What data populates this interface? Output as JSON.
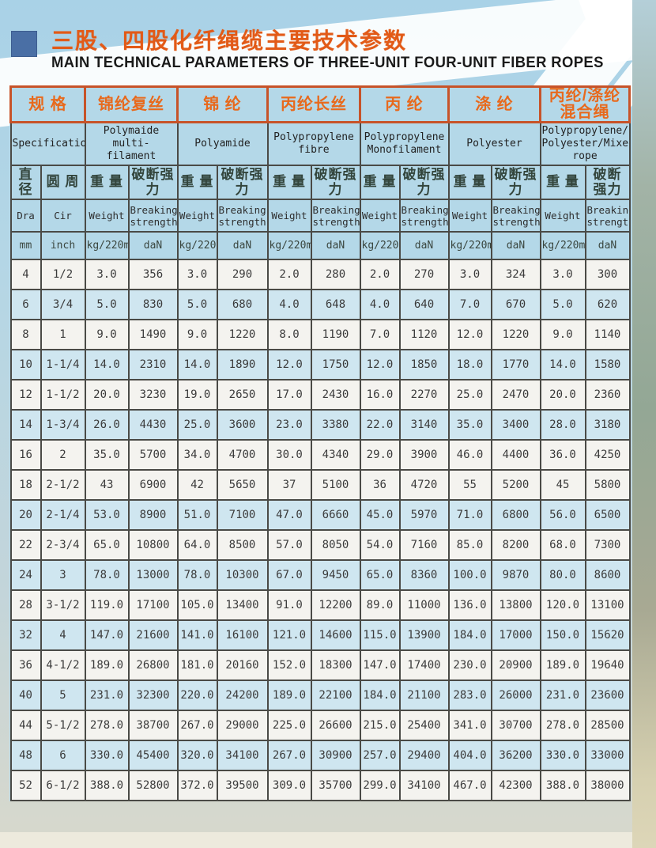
{
  "page": {
    "title_zh": "三股、四股化纤绳缆主要技术参数",
    "title_en": "MAIN TECHNICAL PARAMETERS OF THREE-UNIT FOUR-UNIT FIBER ROPES",
    "accent_orange": "#e25a17",
    "accent_square_blue": "#4a6fa5",
    "shaded_row_color": "#cfe6f0"
  },
  "table": {
    "groups": [
      {
        "zh": "规 格",
        "en": "Specification"
      },
      {
        "zh": "锦纶复丝",
        "en": "Polymaide multi-\nfilament"
      },
      {
        "zh": "锦 纶",
        "en": "Polyamide"
      },
      {
        "zh": "丙纶长丝",
        "en": "Polypropylene\nfibre"
      },
      {
        "zh": "丙 纶",
        "en": "Polypropylene\nMonofilament"
      },
      {
        "zh": "涤 纶",
        "en": "Polyester"
      },
      {
        "zh": "丙纶/涤纶\n混合绳",
        "en": "Polypropylene/\nPolyester/Mixed\nrope"
      }
    ],
    "columns": [
      {
        "zh": "直径",
        "en": "Dra",
        "unit": "mm"
      },
      {
        "zh": "圆 周",
        "en": "Cir",
        "unit": "inch"
      },
      {
        "zh": "重 量",
        "en": "Weight",
        "unit": "kg/220m"
      },
      {
        "zh": "破断强力",
        "en": "Breaking\nstrength",
        "unit": "daN"
      },
      {
        "zh": "重 量",
        "en": "Weight",
        "unit": "kg/220m"
      },
      {
        "zh": "破断强力",
        "en": "Breaking\nstrength",
        "unit": "daN"
      },
      {
        "zh": "重 量",
        "en": "Weight",
        "unit": "kg/220m"
      },
      {
        "zh": "破断强力",
        "en": "Breaking\nstrength",
        "unit": "daN"
      },
      {
        "zh": "重 量",
        "en": "Weight",
        "unit": "kg/220m"
      },
      {
        "zh": "破断强力",
        "en": "Breaking\nstrength",
        "unit": "daN"
      },
      {
        "zh": "重 量",
        "en": "Weight",
        "unit": "kg/220m"
      },
      {
        "zh": "破断强力",
        "en": "Breaking\nstrength",
        "unit": "daN"
      },
      {
        "zh": "重 量",
        "en": "Weight",
        "unit": "kg/220m"
      },
      {
        "zh": "破断强力",
        "en": "Breaking\nstrength",
        "unit": "daN"
      }
    ],
    "rows": [
      {
        "shaded": false,
        "cells": [
          "4",
          "1/2",
          "3.0",
          "356",
          "3.0",
          "290",
          "2.0",
          "280",
          "2.0",
          "270",
          "3.0",
          "324",
          "3.0",
          "300"
        ]
      },
      {
        "shaded": true,
        "cells": [
          "6",
          "3/4",
          "5.0",
          "830",
          "5.0",
          "680",
          "4.0",
          "648",
          "4.0",
          "640",
          "7.0",
          "670",
          "5.0",
          "620"
        ]
      },
      {
        "shaded": false,
        "cells": [
          "8",
          "1",
          "9.0",
          "1490",
          "9.0",
          "1220",
          "8.0",
          "1190",
          "7.0",
          "1120",
          "12.0",
          "1220",
          "9.0",
          "1140"
        ]
      },
      {
        "shaded": true,
        "cells": [
          "10",
          "1-1/4",
          "14.0",
          "2310",
          "14.0",
          "1890",
          "12.0",
          "1750",
          "12.0",
          "1850",
          "18.0",
          "1770",
          "14.0",
          "1580"
        ]
      },
      {
        "shaded": false,
        "cells": [
          "12",
          "1-1/2",
          "20.0",
          "3230",
          "19.0",
          "2650",
          "17.0",
          "2430",
          "16.0",
          "2270",
          "25.0",
          "2470",
          "20.0",
          "2360"
        ]
      },
      {
        "shaded": true,
        "cells": [
          "14",
          "1-3/4",
          "26.0",
          "4430",
          "25.0",
          "3600",
          "23.0",
          "3380",
          "22.0",
          "3140",
          "35.0",
          "3400",
          "28.0",
          "3180"
        ]
      },
      {
        "shaded": false,
        "cells": [
          "16",
          "2",
          "35.0",
          "5700",
          "34.0",
          "4700",
          "30.0",
          "4340",
          "29.0",
          "3900",
          "46.0",
          "4400",
          "36.0",
          "4250"
        ]
      },
      {
        "shaded": false,
        "cells": [
          "18",
          "2-1/2",
          "43",
          "6900",
          "42",
          "5650",
          "37",
          "5100",
          "36",
          "4720",
          "55",
          "5200",
          "45",
          "5800"
        ]
      },
      {
        "shaded": true,
        "cells": [
          "20",
          "2-1/4",
          "53.0",
          "8900",
          "51.0",
          "7100",
          "47.0",
          "6660",
          "45.0",
          "5970",
          "71.0",
          "6800",
          "56.0",
          "6500"
        ]
      },
      {
        "shaded": false,
        "cells": [
          "22",
          "2-3/4",
          "65.0",
          "10800",
          "64.0",
          "8500",
          "57.0",
          "8050",
          "54.0",
          "7160",
          "85.0",
          "8200",
          "68.0",
          "7300"
        ]
      },
      {
        "shaded": true,
        "cells": [
          "24",
          "3",
          "78.0",
          "13000",
          "78.0",
          "10300",
          "67.0",
          "9450",
          "65.0",
          "8360",
          "100.0",
          "9870",
          "80.0",
          "8600"
        ]
      },
      {
        "shaded": false,
        "cells": [
          "28",
          "3-1/2",
          "119.0",
          "17100",
          "105.0",
          "13400",
          "91.0",
          "12200",
          "89.0",
          "11000",
          "136.0",
          "13800",
          "120.0",
          "13100"
        ]
      },
      {
        "shaded": true,
        "cells": [
          "32",
          "4",
          "147.0",
          "21600",
          "141.0",
          "16100",
          "121.0",
          "14600",
          "115.0",
          "13900",
          "184.0",
          "17000",
          "150.0",
          "15620"
        ]
      },
      {
        "shaded": false,
        "cells": [
          "36",
          "4-1/2",
          "189.0",
          "26800",
          "181.0",
          "20160",
          "152.0",
          "18300",
          "147.0",
          "17400",
          "230.0",
          "20900",
          "189.0",
          "19640"
        ]
      },
      {
        "shaded": true,
        "cells": [
          "40",
          "5",
          "231.0",
          "32300",
          "220.0",
          "24200",
          "189.0",
          "22100",
          "184.0",
          "21100",
          "283.0",
          "26000",
          "231.0",
          "23600"
        ]
      },
      {
        "shaded": false,
        "cells": [
          "44",
          "5-1/2",
          "278.0",
          "38700",
          "267.0",
          "29000",
          "225.0",
          "26600",
          "215.0",
          "25400",
          "341.0",
          "30700",
          "278.0",
          "28500"
        ]
      },
      {
        "shaded": true,
        "cells": [
          "48",
          "6",
          "330.0",
          "45400",
          "320.0",
          "34100",
          "267.0",
          "30900",
          "257.0",
          "29400",
          "404.0",
          "36200",
          "330.0",
          "33000"
        ]
      },
      {
        "shaded": false,
        "cells": [
          "52",
          "6-1/2",
          "388.0",
          "52800",
          "372.0",
          "39500",
          "309.0",
          "35700",
          "299.0",
          "34100",
          "467.0",
          "42300",
          "388.0",
          "38000"
        ]
      }
    ]
  }
}
